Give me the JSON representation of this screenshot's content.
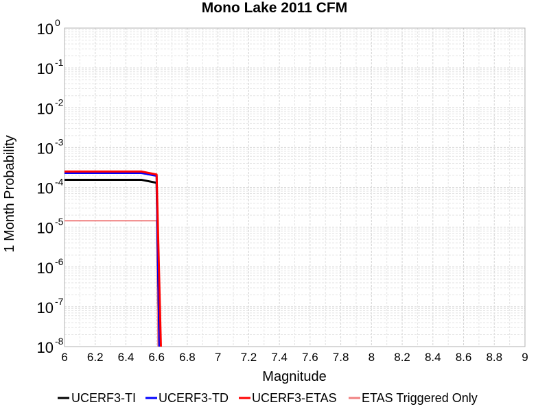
{
  "chart_data": {
    "type": "line",
    "title": "Mono Lake 2011 CFM",
    "xlabel": "Magnitude",
    "ylabel": "1 Month Probability",
    "xlim": [
      6,
      9
    ],
    "ylim": [
      1e-08,
      1
    ],
    "yscale": "log",
    "grid": true,
    "legend_position": "bottom",
    "xticks": [
      "6",
      "6.2",
      "6.4",
      "6.6",
      "6.8",
      "7",
      "7.2",
      "7.4",
      "7.6",
      "7.8",
      "8",
      "8.2",
      "8.4",
      "8.6",
      "8.8",
      "9"
    ],
    "yticks": [
      {
        "base": "10",
        "exp": "0",
        "value": 1
      },
      {
        "base": "10",
        "exp": "-1",
        "value": 0.1
      },
      {
        "base": "10",
        "exp": "-2",
        "value": 0.01
      },
      {
        "base": "10",
        "exp": "-3",
        "value": 0.001
      },
      {
        "base": "10",
        "exp": "-4",
        "value": 0.0001
      },
      {
        "base": "10",
        "exp": "-5",
        "value": 1e-05
      },
      {
        "base": "10",
        "exp": "-6",
        "value": 1e-06
      },
      {
        "base": "10",
        "exp": "-7",
        "value": 1e-07
      },
      {
        "base": "10",
        "exp": "-8",
        "value": 1e-08
      }
    ],
    "series": [
      {
        "name": "UCERF3-TI",
        "color": "#000000",
        "width": 3,
        "x": [
          6.0,
          6.1,
          6.2,
          6.3,
          6.4,
          6.5,
          6.6,
          6.62
        ],
        "y": [
          0.000155,
          0.000155,
          0.000155,
          0.000155,
          0.000155,
          0.000155,
          0.00013,
          5e-09
        ]
      },
      {
        "name": "UCERF3-TD",
        "color": "#0000ff",
        "width": 3,
        "x": [
          6.0,
          6.1,
          6.2,
          6.3,
          6.4,
          6.5,
          6.6,
          6.62
        ],
        "y": [
          0.00023,
          0.00023,
          0.00023,
          0.00023,
          0.00023,
          0.00023,
          0.000195,
          5e-09
        ]
      },
      {
        "name": "UCERF3-ETAS",
        "color": "#ff0000",
        "width": 3,
        "x": [
          6.0,
          6.1,
          6.2,
          6.3,
          6.4,
          6.5,
          6.6,
          6.63
        ],
        "y": [
          0.00025,
          0.00025,
          0.00025,
          0.00025,
          0.00025,
          0.00025,
          0.00021,
          5e-09
        ]
      },
      {
        "name": "ETAS Triggered Only",
        "color": "#f08080",
        "width": 2,
        "x": [
          6.0,
          6.1,
          6.2,
          6.3,
          6.4,
          6.5,
          6.6,
          6.61
        ],
        "y": [
          1.45e-05,
          1.45e-05,
          1.45e-05,
          1.45e-05,
          1.45e-05,
          1.45e-05,
          1.45e-05,
          5e-09
        ]
      }
    ]
  }
}
